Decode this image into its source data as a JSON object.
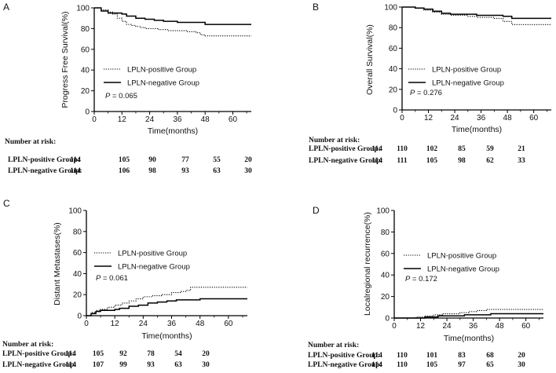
{
  "chart_data": [
    {
      "type": "line",
      "panel": "A",
      "ylabel": "Progress Free Survival(%)",
      "xlabel": "Time(months)",
      "ylim": [
        0,
        100
      ],
      "xlim": [
        0,
        68
      ],
      "xticks": [
        "0",
        "12",
        "24",
        "36",
        "48",
        "60"
      ],
      "yticks": [
        "0",
        "20",
        "40",
        "60",
        "80",
        "100"
      ],
      "legend": [
        "LPLN-positive Group",
        "LPLN-negative Group"
      ],
      "p_prefix": "P",
      "p_value": "= 0.065",
      "series": [
        {
          "name": "LPLN-positive Group",
          "style": "dotted",
          "x": [
            0,
            3,
            6,
            8,
            10,
            12,
            14,
            16,
            18,
            20,
            22,
            24,
            28,
            32,
            36,
            40,
            44,
            46,
            48,
            52,
            60,
            68
          ],
          "y": [
            100,
            98,
            96,
            94,
            90,
            87,
            84,
            83,
            82,
            81,
            80,
            80,
            79,
            78,
            78,
            77,
            76,
            74,
            73,
            73,
            73,
            73
          ]
        },
        {
          "name": "LPLN-negative Group",
          "style": "solid",
          "x": [
            0,
            3,
            6,
            9,
            12,
            14,
            18,
            22,
            26,
            30,
            36,
            42,
            48,
            52,
            60,
            68
          ],
          "y": [
            100,
            97,
            95,
            95,
            94,
            92,
            90,
            89,
            88,
            87,
            86,
            86,
            84,
            84,
            84,
            84
          ]
        }
      ],
      "risk_table": {
        "title": "Number at risk:",
        "rows": [
          {
            "label": "LPLN-positive Group:",
            "values": [
              "114",
              "105",
              "90",
              "77",
              "55",
              "20"
            ]
          },
          {
            "label": "LPLN-negative Group:",
            "values": [
              "114",
              "106",
              "98",
              "93",
              "63",
              "30"
            ]
          }
        ]
      }
    },
    {
      "type": "line",
      "panel": "B",
      "ylabel": "Overall Survival(%)",
      "xlabel": "Time(months)",
      "ylim": [
        0,
        100
      ],
      "xlim": [
        0,
        68
      ],
      "xticks": [
        "0",
        "12",
        "24",
        "36",
        "48",
        "60"
      ],
      "yticks": [
        "0",
        "20",
        "40",
        "60",
        "80",
        "100"
      ],
      "legend": [
        "LPLN-positive Group",
        "LPLN-negative Group"
      ],
      "p_prefix": "P",
      "p_value": "= 0.276",
      "series": [
        {
          "name": "LPLN-positive Group",
          "style": "dotted",
          "x": [
            0,
            6,
            10,
            14,
            18,
            22,
            26,
            30,
            34,
            38,
            42,
            46,
            50,
            60,
            68
          ],
          "y": [
            100,
            99,
            97,
            95,
            93,
            92,
            92,
            91,
            90,
            90,
            89,
            86,
            83,
            83,
            83
          ]
        },
        {
          "name": "LPLN-negative Group",
          "style": "solid",
          "x": [
            0,
            6,
            10,
            14,
            18,
            22,
            28,
            34,
            40,
            46,
            50,
            60,
            68
          ],
          "y": [
            100,
            99,
            98,
            96,
            94,
            93,
            93,
            92,
            92,
            91,
            89,
            89,
            89
          ]
        }
      ],
      "risk_table": {
        "title": "Number at risk:",
        "rows": [
          {
            "label": "LPLN-positive Group:",
            "values": [
              "114",
              "110",
              "102",
              "85",
              "59",
              "21"
            ]
          },
          {
            "label": "LPLN-negative Group:",
            "values": [
              "114",
              "111",
              "105",
              "98",
              "62",
              "33"
            ]
          }
        ]
      }
    },
    {
      "type": "line",
      "panel": "C",
      "ylabel": "Distant Metastases(%)",
      "xlabel": "Time(months)",
      "ylim": [
        0,
        100
      ],
      "xlim": [
        0,
        68
      ],
      "xticks": [
        "0",
        "12",
        "24",
        "36",
        "48",
        "60"
      ],
      "yticks": [
        "0",
        "20",
        "40",
        "60",
        "80",
        "100"
      ],
      "legend": [
        "LPLN-positive Group",
        "LPLN-negative Group"
      ],
      "p_prefix": "P",
      "p_value": "= 0.061",
      "series": [
        {
          "name": "LPLN-positive Group",
          "style": "dotted",
          "x": [
            0,
            2,
            4,
            6,
            9,
            12,
            15,
            18,
            21,
            24,
            28,
            32,
            36,
            40,
            42,
            44,
            48,
            56,
            68
          ],
          "y": [
            0,
            3,
            5,
            6,
            8,
            10,
            12,
            14,
            16,
            18,
            19,
            20,
            22,
            23,
            24,
            27,
            27,
            27,
            27
          ]
        },
        {
          "name": "LPLN-negative Group",
          "style": "solid",
          "x": [
            0,
            2,
            4,
            6,
            9,
            12,
            14,
            18,
            22,
            26,
            30,
            34,
            38,
            48,
            56,
            68
          ],
          "y": [
            0,
            2,
            4,
            5,
            5,
            6,
            7,
            9,
            10,
            12,
            13,
            14,
            15,
            16,
            16,
            16
          ]
        }
      ],
      "risk_table": {
        "title": "Number at risk:",
        "rows": [
          {
            "label": "LPLN-positive Group:",
            "values": [
              "114",
              "105",
              "92",
              "78",
              "54",
              "20"
            ]
          },
          {
            "label": "LPLN-negative Group:",
            "values": [
              "114",
              "107",
              "99",
              "93",
              "63",
              "30"
            ]
          }
        ]
      }
    },
    {
      "type": "line",
      "panel": "D",
      "ylabel": "Localregional recurrence(%)",
      "xlabel": "Time(months)",
      "ylim": [
        0,
        100
      ],
      "xlim": [
        0,
        68
      ],
      "xticks": [
        "0",
        "12",
        "24",
        "36",
        "48",
        "60"
      ],
      "yticks": [
        "0",
        "20",
        "40",
        "60",
        "80",
        "100"
      ],
      "legend": [
        "LPLN-positive Group",
        "LPLN-negative Group"
      ],
      "p_prefix": "P",
      "p_value": "= 0.172",
      "series": [
        {
          "name": "LPLN-positive Group",
          "style": "dotted",
          "x": [
            0,
            10,
            14,
            18,
            22,
            26,
            30,
            34,
            38,
            42,
            50,
            60,
            68
          ],
          "y": [
            0,
            1,
            2,
            3,
            4,
            4,
            5,
            6,
            7,
            8,
            8,
            8,
            8
          ]
        },
        {
          "name": "LPLN-negative Group",
          "style": "solid",
          "x": [
            0,
            14,
            20,
            26,
            32,
            38,
            44,
            50,
            60,
            68
          ],
          "y": [
            0,
            1,
            2,
            2,
            3,
            3,
            4,
            4,
            4,
            4
          ]
        }
      ],
      "risk_table": {
        "title": "Number at risk:",
        "rows": [
          {
            "label": "LPLN-positive Group:",
            "values": [
              "114",
              "110",
              "101",
              "83",
              "68",
              "20"
            ]
          },
          {
            "label": "LPLN-negative Group:",
            "values": [
              "114",
              "110",
              "105",
              "97",
              "65",
              "30"
            ]
          }
        ]
      }
    }
  ]
}
